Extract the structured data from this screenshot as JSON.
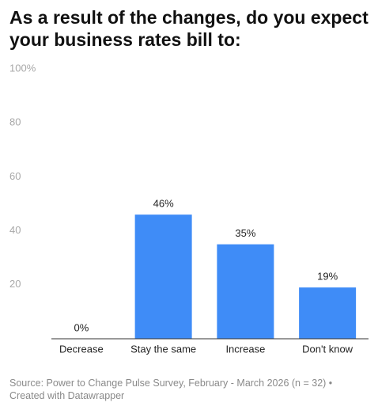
{
  "chart_data": {
    "type": "bar",
    "title": "As a result of the changes, do you expect your business rates bill to:",
    "categories": [
      "Decrease",
      "Stay the same",
      "Increase",
      "Don't know"
    ],
    "values": [
      0,
      46,
      35,
      19
    ],
    "value_labels": [
      "0%",
      "46%",
      "35%",
      "19%"
    ],
    "color": "#3f8cf7",
    "ylim": [
      0,
      100
    ],
    "yticks": [
      20,
      40,
      60,
      80,
      {
        "value": 100,
        "label": "100%"
      }
    ],
    "grid": false,
    "source": "Source: Power to Change Pulse Survey, February - March 2026 (n = 32) • Created with Datawrapper"
  }
}
